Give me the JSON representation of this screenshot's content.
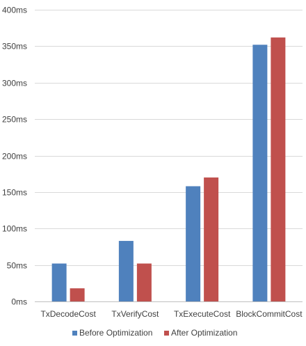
{
  "chart_data": {
    "type": "bar",
    "categories": [
      "TxDecodeCost",
      "TxVerifyCost",
      "TxExecuteCost",
      "BlockCommitCost"
    ],
    "series": [
      {
        "name": "Before Optimization",
        "color": "#4f81bd",
        "values": [
          52,
          83,
          158,
          352
        ]
      },
      {
        "name": "After Optimization",
        "color": "#c0504d",
        "values": [
          18,
          52,
          170,
          362
        ]
      }
    ],
    "yticks": [
      0,
      50,
      100,
      150,
      200,
      250,
      300,
      350,
      400
    ],
    "ytick_labels": [
      "0ms",
      "50ms",
      "100ms",
      "150ms",
      "200ms",
      "250ms",
      "300ms",
      "350ms",
      "400ms"
    ],
    "ylim": [
      0,
      400
    ],
    "grid": true,
    "legend_position": "bottom",
    "title": "",
    "xlabel": "",
    "ylabel": ""
  }
}
